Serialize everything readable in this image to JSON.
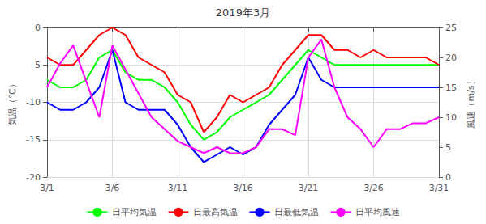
{
  "chart_data": {
    "type": "line",
    "title": "2019年3月",
    "x": [
      1,
      2,
      3,
      4,
      5,
      6,
      7,
      8,
      9,
      10,
      11,
      12,
      13,
      14,
      15,
      16,
      17,
      18,
      19,
      20,
      21,
      22,
      23,
      24,
      25,
      26,
      27,
      28,
      29,
      30,
      31
    ],
    "xlim": [
      1,
      31
    ],
    "xticks": [
      {
        "value": 1,
        "label": "3/1"
      },
      {
        "value": 6,
        "label": "3/6"
      },
      {
        "value": 11,
        "label": "3/11"
      },
      {
        "value": 16,
        "label": "3/16"
      },
      {
        "value": 21,
        "label": "3/21"
      },
      {
        "value": 26,
        "label": "3/26"
      },
      {
        "value": 31,
        "label": "3/31"
      }
    ],
    "ylabel": "気温（℃）",
    "ylim": [
      -20,
      0
    ],
    "yticks": [
      0,
      -5,
      -10,
      -15,
      -20
    ],
    "y2label": "風速（m/s）",
    "y2lim": [
      0,
      25
    ],
    "y2ticks": [
      0,
      5,
      10,
      15,
      20,
      25
    ],
    "grid": true,
    "legend": "bottom",
    "series": [
      {
        "name": "日平均気温",
        "color": "#00ff00",
        "values": [
          -7,
          -8,
          -8,
          -7,
          -4,
          -3,
          -6,
          -7,
          -7,
          -8,
          -10,
          -13,
          -15,
          -14,
          -12,
          -11,
          -10,
          -9,
          -7,
          -5,
          -3,
          -4,
          -5,
          -5,
          -5,
          -5,
          -5,
          -5,
          -5,
          -5,
          -5
        ]
      },
      {
        "name": "日最高気温",
        "color": "#ff0000",
        "values": [
          -4,
          -5,
          -5,
          -3,
          -1,
          0,
          -1,
          -4,
          -5,
          -6,
          -9,
          -10,
          -14,
          -12,
          -9,
          -10,
          -9,
          -8,
          -5,
          -3,
          -1,
          -1,
          -3,
          -3,
          -4,
          -3,
          -4,
          -4,
          -4,
          -4,
          -5
        ]
      },
      {
        "name": "日最低気温",
        "color": "#0000ff",
        "values": [
          -10,
          -11,
          -11,
          -10,
          -8,
          -3,
          -10,
          -11,
          -11,
          -11,
          -13,
          -16,
          -18,
          -17,
          -16,
          -17,
          -16,
          -13,
          -11,
          -9,
          -4,
          -7,
          -8,
          -8,
          -8,
          -8,
          -8,
          -8,
          -8,
          -8,
          -8
        ]
      },
      {
        "name": "日平均風速",
        "color": "#ff00ff",
        "axis": "y2",
        "values": [
          15,
          19,
          22,
          16,
          10,
          22,
          18,
          14,
          10,
          8,
          6,
          5,
          4,
          5,
          4,
          4,
          5,
          8,
          8,
          7,
          20,
          23,
          15,
          10,
          8,
          5,
          8,
          8,
          9,
          9,
          10
        ]
      }
    ]
  }
}
